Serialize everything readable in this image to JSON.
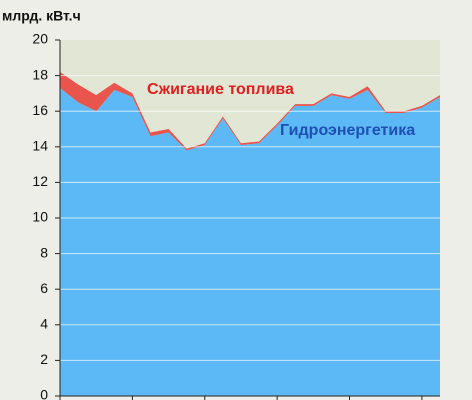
{
  "chart_data": {
    "type": "stacked-area",
    "y_label": "млрд. кВт.ч",
    "categories": [
      null,
      null,
      null,
      null,
      null,
      null,
      null,
      null,
      null,
      null,
      null,
      null,
      null,
      null,
      null,
      null,
      null,
      null,
      null,
      null,
      null,
      null
    ],
    "series": [
      {
        "name": "Гидроэнергетика",
        "color": "#5cb9f5",
        "values": [
          17.3,
          16.5,
          16.0,
          17.2,
          16.8,
          14.6,
          14.8,
          13.8,
          14.1,
          15.6,
          14.1,
          14.2,
          15.2,
          16.3,
          16.3,
          16.9,
          16.7,
          17.2,
          15.9,
          15.9,
          16.2,
          16.8
        ]
      },
      {
        "name": "Сжигание топлива",
        "color": "#e9544c",
        "values": [
          0.9,
          1.0,
          0.9,
          0.4,
          0.2,
          0.2,
          0.2,
          0.1,
          0.1,
          0.1,
          0.1,
          0.1,
          0.1,
          0.1,
          0.1,
          0.1,
          0.1,
          0.2,
          0.1,
          0.1,
          0.1,
          0.1
        ]
      }
    ],
    "ylim": [
      0,
      20
    ],
    "yticks": [
      0,
      2,
      4,
      6,
      8,
      10,
      12,
      14,
      16,
      18,
      20
    ],
    "grid": true
  }
}
